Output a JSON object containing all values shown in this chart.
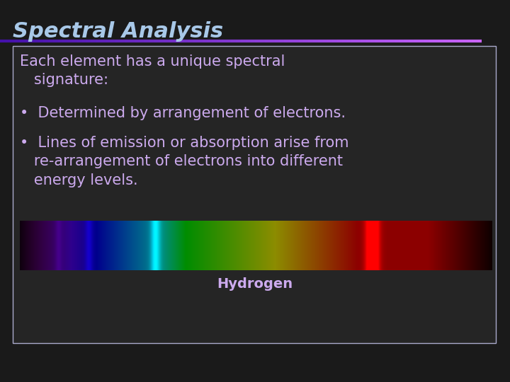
{
  "title": "Spectral Analysis",
  "title_color": "#a8c8e8",
  "title_fontsize": 22,
  "title_style": "italic",
  "title_weight": "bold",
  "divider_color_left": "#4422aa",
  "divider_color_right": "#cc88ff",
  "slide_bg": "#1a1a1a",
  "box_bg": "#252525",
  "box_edge_color": "#aaaacc",
  "text_color": "#ccaaee",
  "text_fontsize": 15,
  "heading_text": "Each element has a unique spectral\n   signature:",
  "bullet1": "Determined by arrangement of electrons.",
  "bullet2": "Lines of emission or absorption arise from\n   re-arrangement of electrons into different\n   energy levels.",
  "caption": "Hydrogen",
  "caption_color": "#ccaaee",
  "caption_fontsize": 14
}
